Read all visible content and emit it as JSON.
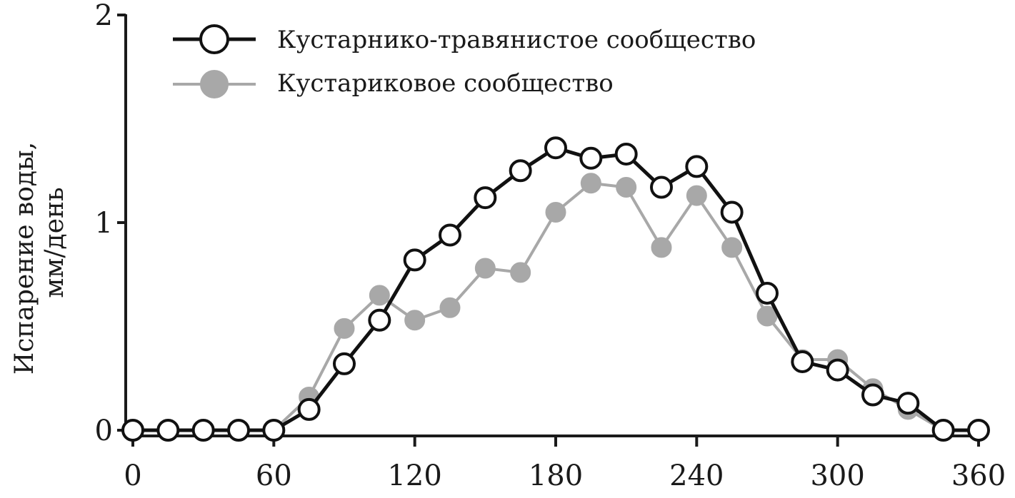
{
  "chart_data": {
    "type": "line",
    "title": "",
    "xlabel": "",
    "ylabel": [
      "Испарение воды,",
      "мм/день"
    ],
    "xlim": [
      0,
      360
    ],
    "ylim": [
      0,
      2
    ],
    "xticks": [
      "0",
      "60",
      "120",
      "180",
      "240",
      "300",
      "360"
    ],
    "yticks": [
      "0",
      "1",
      "2"
    ],
    "grid": false,
    "legend_position": "top-left",
    "series": [
      {
        "name": "Кустарнико-травянистое сообщество",
        "marker": "open-circle",
        "line_color": "#111111",
        "marker_fill": "#ffffff",
        "points": [
          [
            0,
            0
          ],
          [
            15,
            0
          ],
          [
            30,
            0
          ],
          [
            45,
            0
          ],
          [
            60,
            0
          ],
          [
            75,
            0.1
          ],
          [
            90,
            0.32
          ],
          [
            105,
            0.53
          ],
          [
            120,
            0.82
          ],
          [
            135,
            0.94
          ],
          [
            150,
            1.12
          ],
          [
            165,
            1.25
          ],
          [
            180,
            1.36
          ],
          [
            195,
            1.31
          ],
          [
            210,
            1.33
          ],
          [
            225,
            1.17
          ],
          [
            240,
            1.27
          ],
          [
            255,
            1.05
          ],
          [
            270,
            0.66
          ],
          [
            285,
            0.33
          ],
          [
            300,
            0.29
          ],
          [
            315,
            0.17
          ],
          [
            330,
            0.13
          ],
          [
            345,
            0
          ],
          [
            360,
            0
          ]
        ]
      },
      {
        "name": "Кустариковое сообщество",
        "marker": "filled-circle",
        "line_color": "#a8a8a8",
        "marker_fill": "#a8a8a8",
        "points": [
          [
            0,
            0
          ],
          [
            15,
            0
          ],
          [
            30,
            0
          ],
          [
            45,
            0
          ],
          [
            60,
            0
          ],
          [
            75,
            0.16
          ],
          [
            90,
            0.49
          ],
          [
            105,
            0.65
          ],
          [
            120,
            0.53
          ],
          [
            135,
            0.59
          ],
          [
            150,
            0.78
          ],
          [
            165,
            0.76
          ],
          [
            180,
            1.05
          ],
          [
            195,
            1.19
          ],
          [
            210,
            1.17
          ],
          [
            225,
            0.88
          ],
          [
            240,
            1.13
          ],
          [
            255,
            0.88
          ],
          [
            270,
            0.55
          ],
          [
            285,
            0.34
          ],
          [
            300,
            0.34
          ],
          [
            315,
            0.2
          ],
          [
            330,
            0.1
          ],
          [
            345,
            0
          ],
          [
            360,
            0
          ]
        ]
      }
    ]
  }
}
